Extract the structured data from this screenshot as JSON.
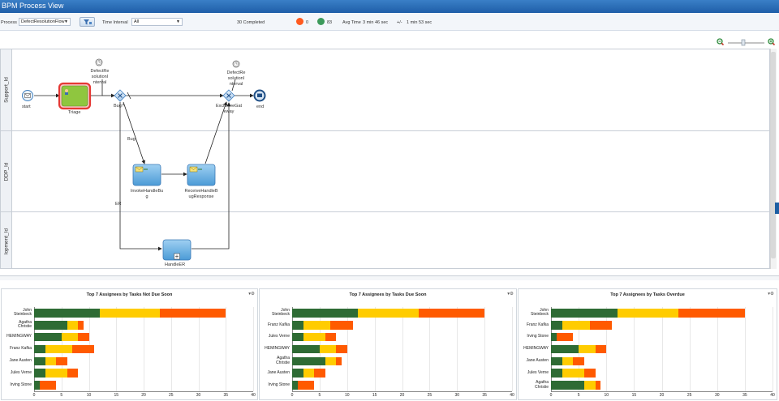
{
  "title": "BPM Process View",
  "filters": {
    "process_label": "Process",
    "process_value": "DefectResolutionFlow",
    "time_interval_label": "Time Interval",
    "time_interval_value": "All",
    "completed_text": "30 Completed",
    "red_count": "0",
    "green_count": "83",
    "avg_time_label": "Avg Time",
    "avg_time_value": "3 min 46 sec",
    "plus_minus": "+/-",
    "deviation_value": "1 min 53 sec"
  },
  "colors": {
    "red": "#ff5a1f",
    "green": "#3c9a5b",
    "bar_green": "#2e6b34",
    "bar_yellow": "#ffcc00",
    "bar_orange": "#ff5a00"
  },
  "lanes": [
    "Support_Id",
    "DDP_Id",
    "lopment_Id"
  ],
  "nodes": {
    "start": "start",
    "triage": "Triage",
    "defectres1_l1": "DefectRe",
    "defectres1_l2": "solutionI",
    "defectres1_l3": "nterval",
    "bug_gateway": "Bug?",
    "bug_branch": "Bug",
    "er_branch": "ER",
    "invoke_l1": "InvokeHandleBu",
    "invoke_l2": "g",
    "receive_l1": "ReceiveHandleB",
    "receive_l2": "ugResponse",
    "handle_er": "HandleER",
    "defectres2_l1": "DefectRe",
    "defectres2_l2": "solutionI",
    "defectres2_l3": "nterval",
    "exclusive_l1": "ExclusiveGat",
    "exclusive_l2": "eway",
    "end": "end"
  },
  "panel_menu_icon": "gear-icon",
  "charts": [
    {
      "title": "Top 7 Assignees by Tasks Not Due Soon",
      "assignees": [
        [
          "John",
          "Steinbeck"
        ],
        [
          "Agatha",
          "Christie"
        ],
        [
          "HEMINGWAY"
        ],
        [
          "Franz Kafka"
        ],
        [
          "Jane Austen"
        ],
        [
          "Jules Verne"
        ],
        [
          "Irving Stone"
        ]
      ],
      "ticks": [
        "0",
        "5",
        "10",
        "15",
        "20",
        "25",
        "30",
        "35",
        "40"
      ]
    },
    {
      "title": "Top 7 Assignees by Tasks Due Soon",
      "assignees": [
        [
          "John",
          "Steinbeck"
        ],
        [
          "Franz Kafka"
        ],
        [
          "Jules Verne"
        ],
        [
          "HEMINGWAY"
        ],
        [
          "Agatha",
          "Christie"
        ],
        [
          "Jane Austen"
        ],
        [
          "Irving Stone"
        ]
      ],
      "ticks": [
        "0",
        "5",
        "10",
        "15",
        "20",
        "25",
        "30",
        "35",
        "40"
      ]
    },
    {
      "title": "Top 7 Assignees by Tasks Overdue",
      "assignees": [
        [
          "John",
          "Steinbeck"
        ],
        [
          "Franz Kafka"
        ],
        [
          "Irving Stone"
        ],
        [
          "HEMINGWAY"
        ],
        [
          "Jane Austen"
        ],
        [
          "Jules Verne"
        ],
        [
          "Agatha",
          "Christie"
        ]
      ],
      "ticks": [
        "0",
        "5",
        "10",
        "15",
        "20",
        "25",
        "30",
        "35",
        "40"
      ]
    }
  ],
  "chart_data": [
    {
      "type": "bar",
      "title": "Top 7 Assignees by Tasks Not Due Soon",
      "orientation": "horizontal",
      "stacked": true,
      "categories": [
        "John Steinbeck",
        "Agatha Christie",
        "HEMINGWAY",
        "Franz Kafka",
        "Jane Austen",
        "Jules Verne",
        "Irving Stone"
      ],
      "series": [
        {
          "values": [
            12,
            6,
            5,
            2,
            2,
            2,
            1
          ]
        },
        {
          "values": [
            11,
            2,
            3,
            5,
            2,
            4,
            0
          ]
        },
        {
          "values": [
            12,
            1,
            2,
            4,
            2,
            2,
            3
          ]
        }
      ],
      "xlim": [
        0,
        40
      ]
    },
    {
      "type": "bar",
      "title": "Top 7 Assignees by Tasks Due Soon",
      "orientation": "horizontal",
      "stacked": true,
      "categories": [
        "John Steinbeck",
        "Franz Kafka",
        "Jules Verne",
        "HEMINGWAY",
        "Agatha Christie",
        "Jane Austen",
        "Irving Stone"
      ],
      "series": [
        {
          "values": [
            12,
            2,
            2,
            5,
            6,
            2,
            1
          ]
        },
        {
          "values": [
            11,
            5,
            4,
            3,
            2,
            2,
            0
          ]
        },
        {
          "values": [
            12,
            4,
            2,
            2,
            1,
            2,
            3
          ]
        }
      ],
      "xlim": [
        0,
        40
      ]
    },
    {
      "type": "bar",
      "title": "Top 7 Assignees by Tasks Overdue",
      "orientation": "horizontal",
      "stacked": true,
      "categories": [
        "John Steinbeck",
        "Franz Kafka",
        "Irving Stone",
        "HEMINGWAY",
        "Jane Austen",
        "Jules Verne",
        "Agatha Christie"
      ],
      "series": [
        {
          "values": [
            12,
            2,
            1,
            5,
            2,
            2,
            6
          ]
        },
        {
          "values": [
            11,
            5,
            0,
            3,
            2,
            4,
            2
          ]
        },
        {
          "values": [
            12,
            4,
            3,
            2,
            2,
            2,
            1
          ]
        }
      ],
      "xlim": [
        0,
        40
      ]
    }
  ]
}
